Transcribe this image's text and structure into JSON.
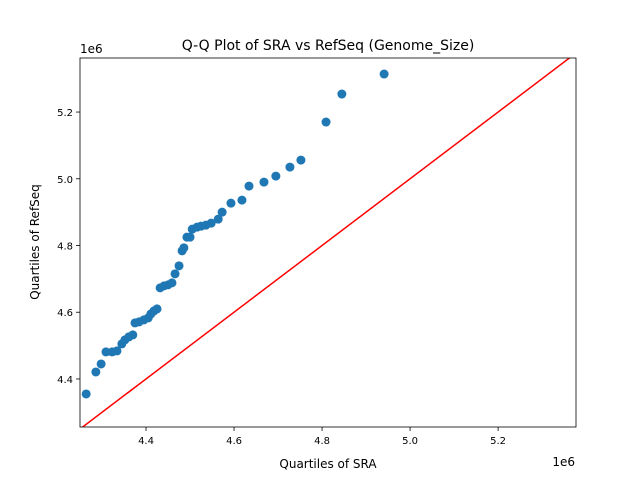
{
  "chart_data": {
    "type": "scatter",
    "title": "Q-Q Plot of SRA vs RefSeq (Genome_Size)",
    "xlabel": "Quartiles of SRA",
    "ylabel": "Quartiles of RefSeq",
    "x_offset_label": "1e6",
    "y_offset_label": "1e6",
    "xlim": [
      4.25,
      5.377
    ],
    "ylim": [
      4.256,
      5.362
    ],
    "xticks": [
      4.4,
      4.6,
      4.8,
      5.0,
      5.2
    ],
    "xtick_labels": [
      "4.4",
      "4.6",
      "4.8",
      "5.0",
      "5.2"
    ],
    "yticks": [
      4.4,
      4.6,
      4.8,
      5.0,
      5.2
    ],
    "ytick_labels": [
      "4.4",
      "4.6",
      "4.8",
      "5.0",
      "5.2"
    ],
    "grid": false,
    "point_color": "#1f77b4",
    "reference_line": {
      "type": "y=x",
      "color": "#ff0000"
    },
    "points": [
      [
        4.264,
        4.355
      ],
      [
        4.286,
        4.421
      ],
      [
        4.298,
        4.445
      ],
      [
        4.309,
        4.481
      ],
      [
        4.323,
        4.481
      ],
      [
        4.334,
        4.484
      ],
      [
        4.345,
        4.505
      ],
      [
        4.352,
        4.517
      ],
      [
        4.361,
        4.526
      ],
      [
        4.37,
        4.532
      ],
      [
        4.375,
        4.568
      ],
      [
        4.384,
        4.571
      ],
      [
        4.395,
        4.577
      ],
      [
        4.405,
        4.583
      ],
      [
        4.411,
        4.595
      ],
      [
        4.418,
        4.604
      ],
      [
        4.425,
        4.61
      ],
      [
        4.432,
        4.673
      ],
      [
        4.441,
        4.679
      ],
      [
        4.45,
        4.682
      ],
      [
        4.459,
        4.688
      ],
      [
        4.466,
        4.715
      ],
      [
        4.475,
        4.739
      ],
      [
        4.482,
        4.784
      ],
      [
        4.486,
        4.793
      ],
      [
        4.493,
        4.825
      ],
      [
        4.5,
        4.825
      ],
      [
        4.505,
        4.849
      ],
      [
        4.516,
        4.855
      ],
      [
        4.525,
        4.858
      ],
      [
        4.536,
        4.861
      ],
      [
        4.548,
        4.867
      ],
      [
        4.564,
        4.879
      ],
      [
        4.573,
        4.9
      ],
      [
        4.593,
        4.927
      ],
      [
        4.618,
        4.936
      ],
      [
        4.634,
        4.978
      ],
      [
        4.668,
        4.99
      ],
      [
        4.695,
        5.008
      ],
      [
        4.727,
        5.035
      ],
      [
        4.752,
        5.056
      ],
      [
        4.809,
        5.17
      ],
      [
        4.845,
        5.254
      ],
      [
        4.941,
        5.314
      ]
    ]
  }
}
